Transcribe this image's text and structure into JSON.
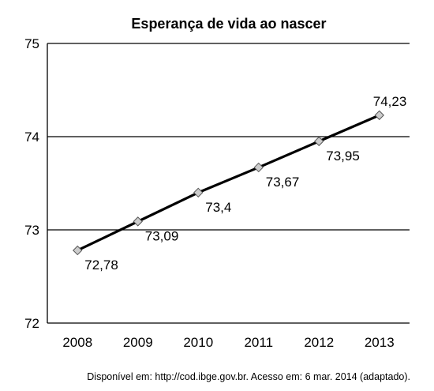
{
  "chart_data": {
    "type": "line",
    "title": "Esperança de vida ao nascer",
    "xlabel": "",
    "ylabel": "",
    "categories": [
      "2008",
      "2009",
      "2010",
      "2011",
      "2012",
      "2013"
    ],
    "series": [
      {
        "values": [
          72.78,
          73.09,
          73.4,
          73.67,
          73.95,
          74.23
        ],
        "value_labels": [
          "72,78",
          "73,09",
          "73,4",
          "73,67",
          "73,95",
          "74,23"
        ],
        "color": "#000000",
        "marker": "diamond",
        "marker_fill": "#cccccc"
      }
    ],
    "ylim": [
      72,
      75
    ],
    "yticks": [
      72,
      73,
      74,
      75
    ],
    "ytick_labels": [
      "72",
      "73",
      "74",
      "75"
    ],
    "grid": "horizontal",
    "legend": "none"
  },
  "source_note": "Disponível em: http://cod.ibge.gov.br. Acesso em: 6 mar. 2014 (adaptado)."
}
